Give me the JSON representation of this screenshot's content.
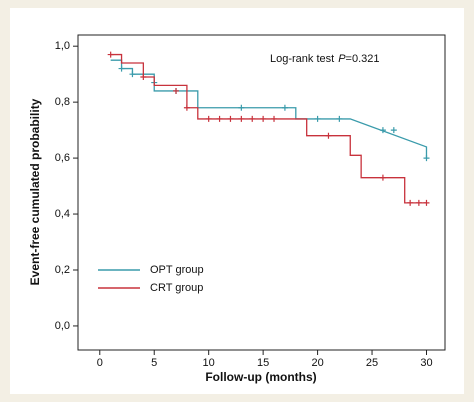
{
  "chart_data": {
    "type": "line",
    "xlabel": "Follow-up (months)",
    "ylabel": "Event-free cumulated probability",
    "annotation_prefix": "Log-rank test",
    "annotation_p": "P",
    "annotation_value": "=0.321",
    "xlim": [
      -2,
      31.7
    ],
    "ylim": [
      -0.086,
      1.04
    ],
    "xticks": [
      0,
      5,
      10,
      15,
      20,
      25,
      30
    ],
    "yticks": [
      {
        "value": 0,
        "label": "0,0"
      },
      {
        "value": 0.2,
        "label": "0,2"
      },
      {
        "value": 0.4,
        "label": "0,4"
      },
      {
        "value": 0.6,
        "label": "0,6"
      },
      {
        "value": 0.8,
        "label": "0,8"
      },
      {
        "value": 1.0,
        "label": "1,0"
      }
    ],
    "legend": "lower left",
    "series": [
      {
        "name": "OPT group",
        "color": "#3a9bab",
        "x": [
          1,
          2,
          2,
          3,
          3,
          5,
          5,
          9,
          9,
          18,
          18,
          23,
          30,
          30
        ],
        "values": [
          0.95,
          0.95,
          0.92,
          0.92,
          0.9,
          0.9,
          0.84,
          0.84,
          0.78,
          0.78,
          0.74,
          0.74,
          0.64,
          0.6
        ],
        "censor_x": [
          2,
          3,
          5,
          7,
          13,
          17,
          20,
          22,
          26,
          27,
          30
        ],
        "censor_values": [
          0.92,
          0.9,
          0.87,
          0.84,
          0.78,
          0.78,
          0.74,
          0.74,
          0.7,
          0.7,
          0.6
        ]
      },
      {
        "name": "CRT group",
        "color": "#c8323c",
        "x": [
          1,
          2,
          2,
          4,
          4,
          5,
          5,
          8,
          8,
          9,
          9,
          19,
          19,
          23,
          23,
          24,
          24,
          28,
          28,
          30
        ],
        "values": [
          0.97,
          0.97,
          0.94,
          0.94,
          0.89,
          0.89,
          0.86,
          0.86,
          0.78,
          0.78,
          0.74,
          0.74,
          0.68,
          0.68,
          0.61,
          0.61,
          0.53,
          0.53,
          0.44,
          0.44
        ],
        "censor_x": [
          1,
          4,
          7,
          8,
          10,
          11,
          12,
          13,
          14,
          15,
          16,
          21,
          26,
          28.5,
          29.3,
          30
        ],
        "censor_values": [
          0.97,
          0.89,
          0.84,
          0.78,
          0.74,
          0.74,
          0.74,
          0.74,
          0.74,
          0.74,
          0.74,
          0.68,
          0.53,
          0.44,
          0.44,
          0.44
        ]
      }
    ]
  }
}
